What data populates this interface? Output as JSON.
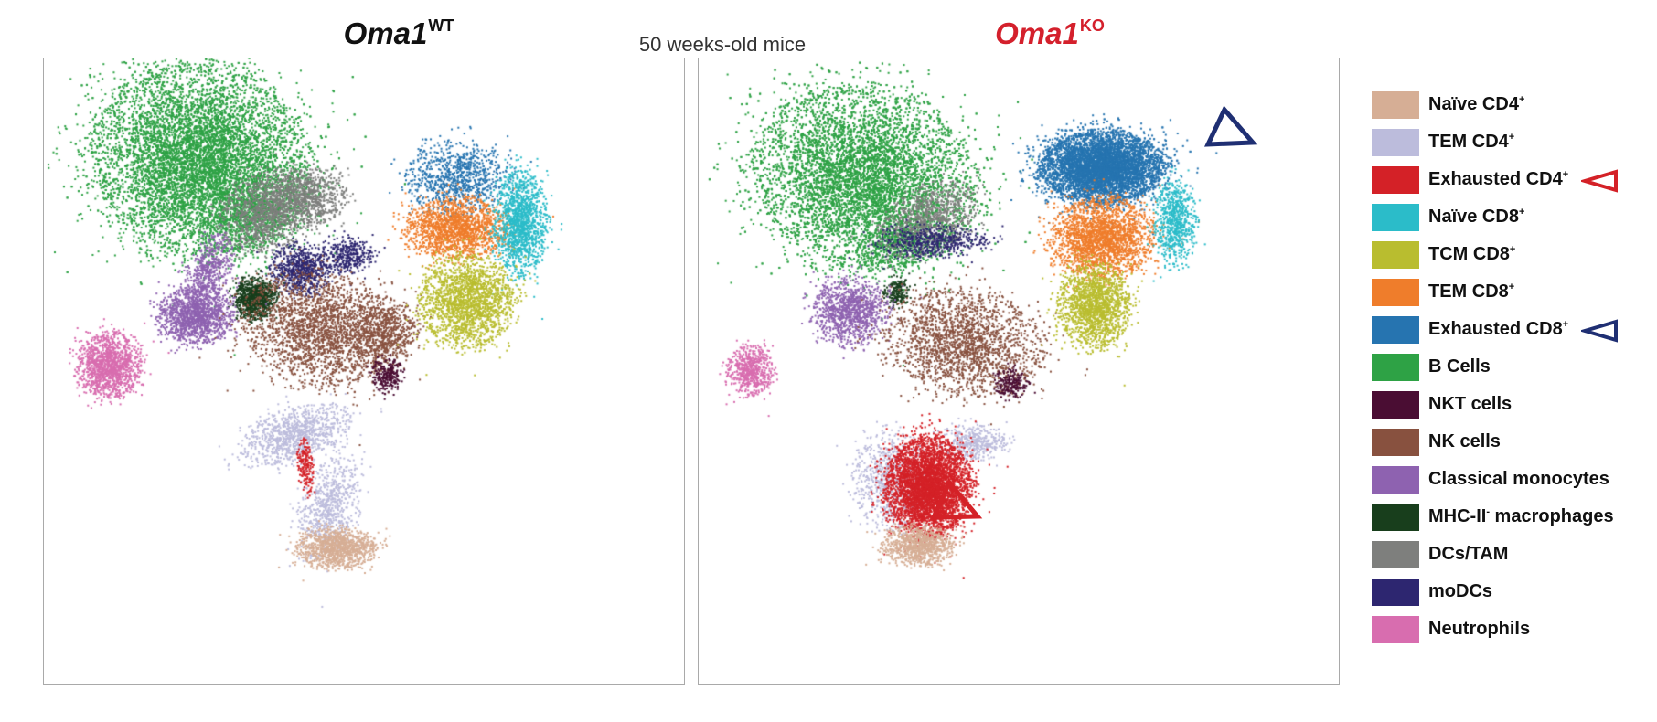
{
  "chart_data": {
    "type": "scatter",
    "subtitle": "50 weeks-old mice",
    "panels": [
      {
        "id": "wt",
        "title_base": "Oma1",
        "title_sup": "WT",
        "title_color": "#111111"
      },
      {
        "id": "ko",
        "title_base": "Oma1",
        "title_sup": "KO",
        "title_color": "#d4202c"
      }
    ],
    "grid": false,
    "legend_placement": "right",
    "legend": [
      {
        "base": "Naïve CD4",
        "sup": "+",
        "color": "#d6ae95",
        "marker": ""
      },
      {
        "base": "TEM CD4",
        "sup": "+",
        "color": "#bcbcdc",
        "marker": ""
      },
      {
        "base": "Exhausted CD4",
        "sup": "+",
        "color": "#d42127",
        "marker": "red-triangle"
      },
      {
        "base": "Naïve CD8",
        "sup": "+",
        "color": "#2bbcc9",
        "marker": ""
      },
      {
        "base": "TCM CD8",
        "sup": "+",
        "color": "#b9bd2f",
        "marker": ""
      },
      {
        "base": "TEM CD8",
        "sup": "+",
        "color": "#ef7d2b",
        "marker": ""
      },
      {
        "base": "Exhausted CD8",
        "sup": "+",
        "color": "#2674b0",
        "marker": "navy-triangle"
      },
      {
        "base": "B Cells",
        "sup": "",
        "color": "#2ea245",
        "marker": ""
      },
      {
        "base": "NKT cells",
        "sup": "",
        "color": "#4a0d33",
        "marker": ""
      },
      {
        "base": "NK cells",
        "sup": "",
        "color": "#88513f",
        "marker": ""
      },
      {
        "base": "Classical monocytes",
        "sup": "",
        "color": "#8e62b0",
        "marker": ""
      },
      {
        "base": "MHC-II",
        "sup": "-",
        "tail": " macrophages",
        "color": "#183e1c",
        "marker": ""
      },
      {
        "base": "DCs/TAM",
        "sup": "",
        "color": "#7e7f7d",
        "marker": ""
      },
      {
        "base": "moDCs",
        "sup": "",
        "color": "#2d2670",
        "marker": ""
      },
      {
        "base": "Neutrophils",
        "sup": "",
        "color": "#d86daf",
        "marker": ""
      }
    ],
    "marker_colors": {
      "red-triangle": "#d42127",
      "navy-triangle": "#1f2f73"
    }
  }
}
